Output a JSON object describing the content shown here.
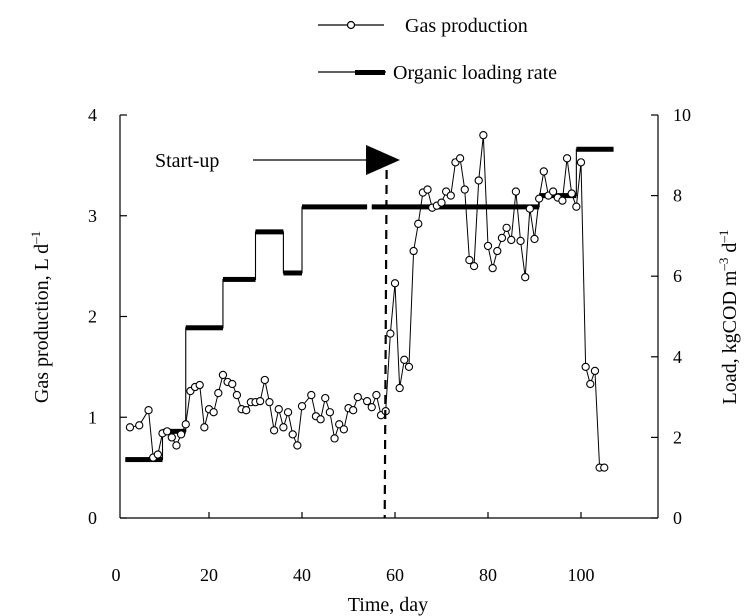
{
  "chart_data": {
    "type": "line",
    "x_axis": {
      "label": "Time, day",
      "range": [
        0,
        110
      ],
      "ticks": [
        0,
        20,
        40,
        60,
        80,
        100
      ]
    },
    "y_axis_left": {
      "label_main": "Gas production, L d",
      "label_sup": "–1",
      "range": [
        0,
        4
      ],
      "ticks": [
        0,
        1,
        2,
        3,
        4
      ]
    },
    "y_axis_right": {
      "label_main": "Load, kgCOD m",
      "label_sup1": "–3",
      "label_mid": " d",
      "label_sup2": "–1",
      "range": [
        0,
        10
      ],
      "ticks": [
        0,
        2,
        4,
        6,
        8,
        10
      ]
    },
    "legend": {
      "position": "top",
      "entries": [
        {
          "label": "Gas production",
          "marker": "circle"
        },
        {
          "label": "Organic loading rate",
          "marker": "bar"
        }
      ]
    },
    "annotation": {
      "text": "Start-up",
      "x": 58
    },
    "series": [
      {
        "name": "Gas production",
        "axis": "left",
        "points": [
          [
            3,
            0.9
          ],
          [
            5,
            0.92
          ],
          [
            7,
            1.07
          ],
          [
            8,
            0.6
          ],
          [
            9,
            0.63
          ],
          [
            10,
            0.84
          ],
          [
            11,
            0.86
          ],
          [
            12,
            0.8
          ],
          [
            13,
            0.72
          ],
          [
            14,
            0.83
          ],
          [
            15,
            0.93
          ],
          [
            16,
            1.26
          ],
          [
            17,
            1.3
          ],
          [
            18,
            1.32
          ],
          [
            19,
            0.9
          ],
          [
            20,
            1.08
          ],
          [
            21,
            1.05
          ],
          [
            22,
            1.24
          ],
          [
            23,
            1.42
          ],
          [
            24,
            1.35
          ],
          [
            25,
            1.33
          ],
          [
            26,
            1.22
          ],
          [
            27,
            1.08
          ],
          [
            28,
            1.07
          ],
          [
            29,
            1.15
          ],
          [
            30,
            1.15
          ],
          [
            31,
            1.16
          ],
          [
            32,
            1.37
          ],
          [
            33,
            1.15
          ],
          [
            34,
            0.87
          ],
          [
            35,
            1.08
          ],
          [
            36,
            0.9
          ],
          [
            37,
            1.05
          ],
          [
            38,
            0.83
          ],
          [
            39,
            0.72
          ],
          [
            40,
            1.11
          ],
          [
            42,
            1.22
          ],
          [
            43,
            1.01
          ],
          [
            44,
            0.98
          ],
          [
            45,
            1.19
          ],
          [
            46,
            1.05
          ],
          [
            47,
            0.79
          ],
          [
            48,
            0.93
          ],
          [
            49,
            0.88
          ],
          [
            50,
            1.09
          ],
          [
            51,
            1.07
          ],
          [
            52,
            1.2
          ],
          [
            54,
            1.16
          ],
          [
            55,
            1.1
          ],
          [
            56,
            1.22
          ],
          [
            57,
            1.02
          ],
          [
            58,
            1.06
          ],
          [
            59,
            1.83
          ],
          [
            60,
            2.33
          ],
          [
            61,
            1.29
          ],
          [
            62,
            1.57
          ],
          [
            63,
            1.5
          ],
          [
            64,
            2.65
          ],
          [
            65,
            2.92
          ],
          [
            66,
            3.23
          ],
          [
            67,
            3.26
          ],
          [
            68,
            3.08
          ],
          [
            69,
            3.1
          ],
          [
            70,
            3.13
          ],
          [
            71,
            3.24
          ],
          [
            72,
            3.2
          ],
          [
            73,
            3.53
          ],
          [
            74,
            3.57
          ],
          [
            75,
            3.26
          ],
          [
            76,
            2.56
          ],
          [
            77,
            2.5
          ],
          [
            78,
            3.35
          ],
          [
            79,
            3.8
          ],
          [
            80,
            2.7
          ],
          [
            81,
            2.48
          ],
          [
            82,
            2.65
          ],
          [
            83,
            2.78
          ],
          [
            84,
            2.88
          ],
          [
            85,
            2.76
          ],
          [
            86,
            3.24
          ],
          [
            87,
            2.75
          ],
          [
            88,
            2.39
          ],
          [
            89,
            3.07
          ],
          [
            90,
            2.77
          ],
          [
            91,
            3.17
          ],
          [
            92,
            3.44
          ],
          [
            93,
            3.2
          ],
          [
            94,
            3.24
          ],
          [
            95,
            3.18
          ],
          [
            96,
            3.15
          ],
          [
            97,
            3.57
          ],
          [
            98,
            3.22
          ],
          [
            99,
            3.09
          ],
          [
            100,
            3.53
          ],
          [
            101,
            1.5
          ],
          [
            102,
            1.33
          ],
          [
            103,
            1.46
          ],
          [
            104,
            0.5
          ],
          [
            105,
            0.5
          ]
        ]
      },
      {
        "name": "Organic loading rate",
        "axis": "right",
        "segments": [
          {
            "x_start": 2,
            "x_end": 10,
            "value": 1.45
          },
          {
            "x_start": 10,
            "x_end": 15,
            "value": 2.15
          },
          {
            "x_start": 15,
            "x_end": 23,
            "value": 4.72
          },
          {
            "x_start": 23,
            "x_end": 30,
            "value": 5.92
          },
          {
            "x_start": 30,
            "x_end": 36,
            "value": 7.1
          },
          {
            "x_start": 36,
            "x_end": 40,
            "value": 6.08
          },
          {
            "x_start": 40,
            "x_end": 54,
            "value": 7.72
          },
          {
            "x_start": 55,
            "x_end": 91,
            "value": 7.72
          },
          {
            "x_start": 91,
            "x_end": 99,
            "value": 8.0
          },
          {
            "x_start": 99,
            "x_end": 107,
            "value": 9.15
          }
        ]
      }
    ]
  }
}
